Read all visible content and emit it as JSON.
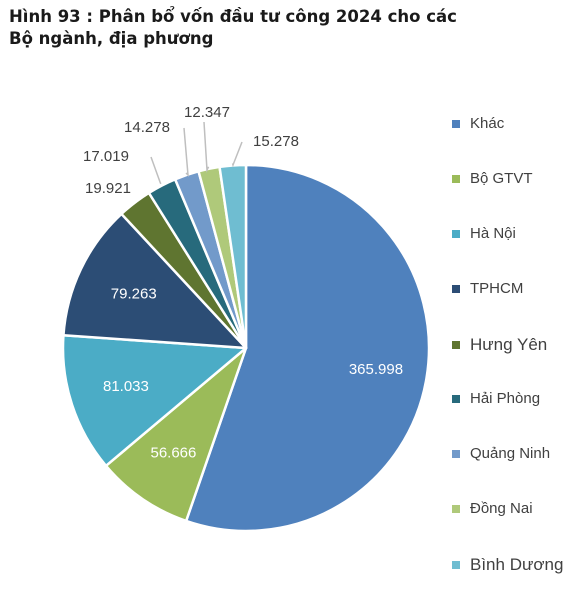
{
  "title": "Hình 93 : Phân bổ vốn đầu tư công 2024 cho các Bộ ngành, địa phương",
  "chart_data": {
    "type": "pie",
    "title": "Hình 93 : Phân bổ vốn đầu tư công 2024 cho các Bộ ngành, địa phương",
    "legend_position": "right",
    "start_angle": "12 o'clock, clockwise",
    "slices": [
      {
        "name": "Khác",
        "value": 365.998,
        "label": "365.998",
        "color": "#4f81bd",
        "label_color": "#ffffff"
      },
      {
        "name": "Bộ GTVT",
        "value": 56.666,
        "label": "56.666",
        "color": "#9bbb59",
        "label_color": "#ffffff"
      },
      {
        "name": "Hà Nội",
        "value": 81.033,
        "label": "81.033",
        "color": "#4bacc6",
        "label_color": "#ffffff"
      },
      {
        "name": "TPHCM",
        "value": 79.263,
        "label": "79.263",
        "color": "#2c4d75",
        "label_color": "#ffffff"
      },
      {
        "name": "Hưng Yên",
        "value": 19.921,
        "label": "19.921",
        "color": "#5f7530",
        "label_color": "#404040"
      },
      {
        "name": "Hải Phòng",
        "value": 17.019,
        "label": "17.019",
        "color": "#276a7c",
        "label_color": "#404040"
      },
      {
        "name": "Quảng Ninh",
        "value": 14.278,
        "label": "14.278",
        "color": "#729aca",
        "label_color": "#404040"
      },
      {
        "name": "Đồng Nai",
        "value": 12.347,
        "label": "12.347",
        "color": "#afc97a",
        "label_color": "#404040"
      },
      {
        "name": "Bình Dương",
        "value": 15.278,
        "label": "15.278",
        "color": "#6fbdd1",
        "label_color": "#404040"
      }
    ]
  }
}
